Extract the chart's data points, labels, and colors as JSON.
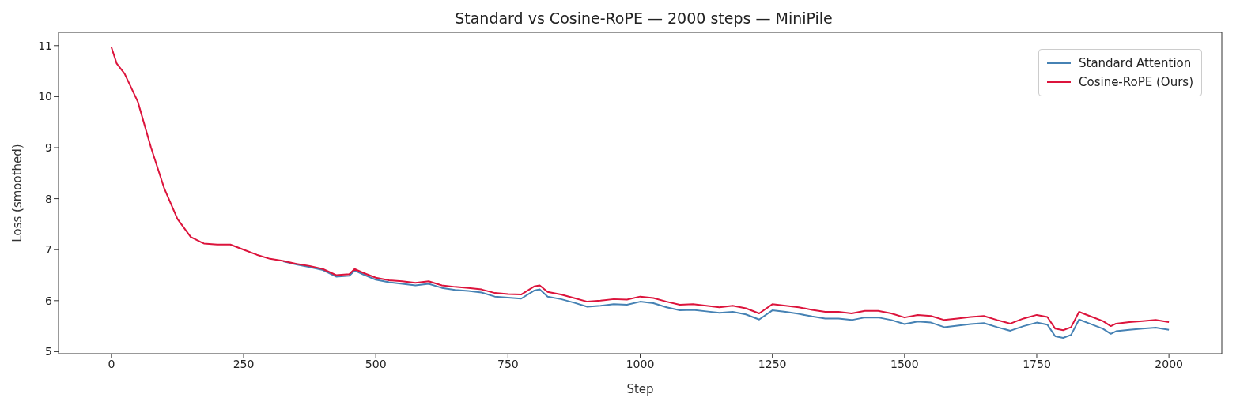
{
  "chart_data": {
    "type": "line",
    "title": "Standard vs Cosine-RoPE — 2000 steps — MiniPile",
    "xlabel": "Step",
    "ylabel": "Loss (smoothed)",
    "x": [
      0,
      10,
      25,
      50,
      75,
      100,
      125,
      150,
      175,
      200,
      225,
      250,
      275,
      300,
      325,
      350,
      375,
      400,
      425,
      450,
      460,
      475,
      500,
      525,
      550,
      575,
      600,
      625,
      650,
      675,
      700,
      725,
      750,
      775,
      800,
      810,
      825,
      850,
      875,
      900,
      925,
      950,
      975,
      1000,
      1025,
      1050,
      1075,
      1100,
      1125,
      1150,
      1175,
      1200,
      1225,
      1250,
      1275,
      1300,
      1325,
      1350,
      1375,
      1400,
      1425,
      1450,
      1475,
      1500,
      1525,
      1550,
      1575,
      1600,
      1625,
      1650,
      1675,
      1700,
      1725,
      1750,
      1770,
      1785,
      1800,
      1815,
      1830,
      1850,
      1875,
      1890,
      1900,
      1925,
      1950,
      1975,
      2000
    ],
    "series": [
      {
        "name": "Standard Attention",
        "color": "#4682b4",
        "values": [
          null,
          null,
          null,
          null,
          null,
          null,
          null,
          null,
          null,
          null,
          null,
          null,
          null,
          null,
          6.77,
          6.71,
          6.66,
          6.6,
          6.47,
          6.49,
          6.59,
          6.52,
          6.41,
          6.36,
          6.33,
          6.3,
          6.33,
          6.25,
          6.21,
          6.19,
          6.16,
          6.08,
          6.06,
          6.04,
          6.2,
          6.22,
          6.08,
          6.03,
          5.96,
          5.88,
          5.9,
          5.93,
          5.92,
          5.98,
          5.95,
          5.87,
          5.81,
          5.82,
          5.79,
          5.76,
          5.78,
          5.73,
          5.63,
          5.81,
          5.78,
          5.74,
          5.69,
          5.65,
          5.65,
          5.62,
          5.67,
          5.67,
          5.62,
          5.54,
          5.59,
          5.57,
          5.48,
          5.51,
          5.54,
          5.56,
          5.48,
          5.41,
          5.5,
          5.57,
          5.53,
          5.3,
          5.27,
          5.33,
          5.63,
          5.55,
          5.45,
          5.35,
          5.4,
          5.43,
          5.45,
          5.47,
          5.43
        ]
      },
      {
        "name": "Cosine-RoPE (Ours)",
        "color": "#dc143c",
        "values": [
          10.97,
          10.65,
          10.45,
          9.9,
          9.0,
          8.2,
          7.6,
          7.25,
          7.12,
          7.1,
          7.1,
          7.0,
          6.9,
          6.82,
          6.78,
          6.72,
          6.68,
          6.62,
          6.5,
          6.52,
          6.62,
          6.55,
          6.45,
          6.4,
          6.38,
          6.35,
          6.38,
          6.3,
          6.27,
          6.25,
          6.22,
          6.15,
          6.13,
          6.12,
          6.28,
          6.3,
          6.17,
          6.12,
          6.05,
          5.98,
          6.0,
          6.03,
          6.02,
          6.08,
          6.05,
          5.98,
          5.92,
          5.93,
          5.9,
          5.87,
          5.9,
          5.85,
          5.75,
          5.93,
          5.9,
          5.87,
          5.82,
          5.78,
          5.78,
          5.75,
          5.8,
          5.8,
          5.75,
          5.67,
          5.72,
          5.7,
          5.62,
          5.65,
          5.68,
          5.7,
          5.62,
          5.55,
          5.65,
          5.72,
          5.68,
          5.45,
          5.42,
          5.48,
          5.78,
          5.7,
          5.6,
          5.5,
          5.55,
          5.58,
          5.6,
          5.62,
          5.58
        ]
      }
    ],
    "xlim": [
      -100,
      2100
    ],
    "xticks": [
      0,
      250,
      500,
      750,
      1000,
      1250,
      1500,
      1750,
      2000
    ],
    "ylim": [
      4.96,
      11.26
    ],
    "yticks": [
      5,
      6,
      7,
      8,
      9,
      10,
      11
    ],
    "legend": "top right",
    "marker": "none",
    "line_style": "solid"
  }
}
